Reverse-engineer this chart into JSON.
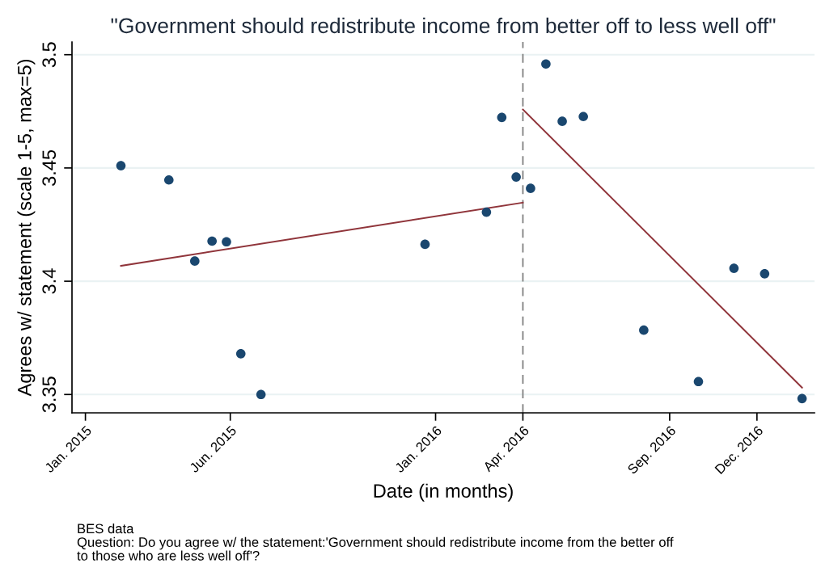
{
  "chart_data": {
    "type": "scatter",
    "title": "\"Government should redistribute income from better off to less well off\"",
    "xlabel": "Date (in months)",
    "ylabel": "Agrees w/ statement (scale 1-5, max=5)",
    "x": [
      "2015-02-07",
      "2015-03-29",
      "2015-04-25",
      "2015-05-13",
      "2015-05-28",
      "2015-06-12",
      "2015-07-03",
      "2015-12-21",
      "2016-02-23",
      "2016-03-10",
      "2016-03-25",
      "2016-04-09",
      "2016-04-25",
      "2016-05-12",
      "2016-06-03",
      "2016-08-05",
      "2016-10-01",
      "2016-11-07",
      "2016-12-09",
      "2017-01-17"
    ],
    "series": [
      {
        "color": "#1a476f",
        "marker": "circle",
        "values": [
          3.451,
          3.4447,
          3.4089,
          3.4177,
          3.4174,
          3.368,
          3.35,
          3.4163,
          3.4305,
          3.4723,
          3.446,
          3.441,
          3.4959,
          3.4706,
          3.4727,
          3.3784,
          3.3557,
          3.4057,
          3.4033,
          3.3482
        ]
      },
      {
        "type": "line",
        "color": "#90353b",
        "x": [
          "2015-02-07",
          "2016-04-01"
        ],
        "values": [
          3.4068,
          3.4347
        ]
      },
      {
        "type": "line",
        "color": "#90353b",
        "x": [
          "2016-04-01",
          "2017-01-17"
        ],
        "values": [
          3.4758,
          3.353
        ]
      }
    ],
    "xlim": [
      "2014-12-18",
      "2017-01-30"
    ],
    "ylim": [
      3.3419,
      3.5056
    ],
    "xticks": [
      {
        "value": "2015-01-01",
        "label": "Jan. 2015"
      },
      {
        "value": "2015-06-01",
        "label": "Jun. 2015"
      },
      {
        "value": "2016-01-01",
        "label": "Jan. 2016"
      },
      {
        "value": "2016-04-01",
        "label": "Apr. 2016"
      },
      {
        "value": "2016-09-01",
        "label": "Sep. 2016"
      },
      {
        "value": "2016-12-01",
        "label": "Dec. 2016"
      }
    ],
    "yticks": [
      3.35,
      3.4,
      3.45,
      3.5
    ],
    "grid": "y",
    "legend": false,
    "ref_lines": [
      {
        "axis": "x",
        "value": "2016-04-01",
        "color": "#7f7f7f",
        "line_style": "dashed"
      }
    ],
    "annotations": [
      "BES data\nQuestion: Do you agree w/ the statement:'Government should redistribute income from the better off\nto those who are less well off'?"
    ]
  }
}
